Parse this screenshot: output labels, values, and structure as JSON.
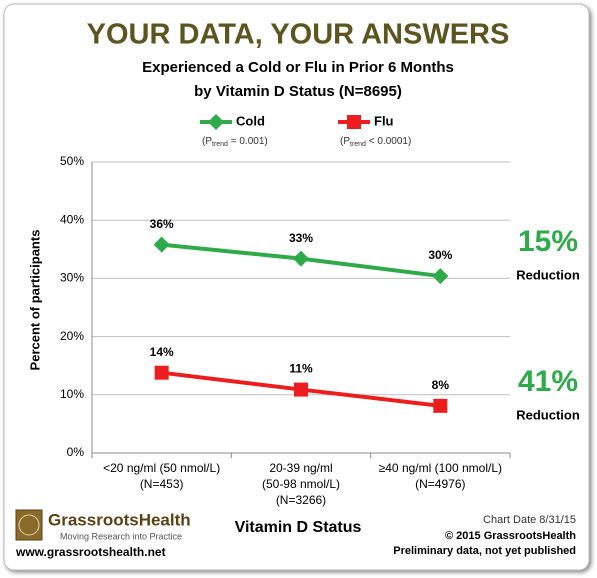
{
  "chart_data": {
    "type": "line",
    "title": "YOUR DATA, YOUR ANSWERS",
    "subtitle": [
      "Experienced a Cold or Flu in Prior 6 Months",
      "by Vitamin D Status (N=8695)"
    ],
    "x_label": "Vitamin D Status",
    "y_label": "Percent of participants",
    "categories": [
      [
        "<20 ng/ml (50 nmol/L)",
        "(N=453)"
      ],
      [
        "20-39 ng/ml",
        "(50-98 nmol/L)",
        "(N=3266)"
      ],
      [
        "≥40 ng/ml (100 nmol/L)",
        "(N=4976)"
      ]
    ],
    "series": [
      {
        "name": "Cold",
        "color": "#2eaa4a",
        "marker": "diamond",
        "values": [
          35.8,
          33.4,
          30.4
        ],
        "value_labels": [
          "36%",
          "33%",
          "30%"
        ],
        "note": {
          "prefix": "(P",
          "sub": "trend",
          "suffix": " = 0.001)"
        }
      },
      {
        "name": "Flu",
        "color": "#ee1d1d",
        "marker": "square",
        "values": [
          13.8,
          10.9,
          8.1
        ],
        "value_labels": [
          "14%",
          "11%",
          "8%"
        ],
        "note": {
          "prefix": "(P",
          "sub": "trend",
          "suffix": " < 0.0001)"
        }
      }
    ],
    "ylim": [
      0,
      50
    ],
    "yticks": [
      {
        "value": 0,
        "label": "0%"
      },
      {
        "value": 10,
        "label": "10%"
      },
      {
        "value": 20,
        "label": "20%"
      },
      {
        "value": 30,
        "label": "30%"
      },
      {
        "value": 40,
        "label": "40%"
      },
      {
        "value": 50,
        "label": "50%"
      }
    ],
    "grid": true,
    "annotations": [
      {
        "value": "15%",
        "text": "Reduction"
      },
      {
        "value": "41%",
        "text": "Reduction"
      }
    ],
    "footer": {
      "brand": "GrassrootsHealth",
      "tagline": "Moving Research into Practice",
      "url": "www.grassrootshealth.net",
      "chart_date": "Chart Date 8/31/15",
      "copyright": "© 2015 GrassrootsHealth",
      "note": "Preliminary data, not yet published"
    }
  }
}
